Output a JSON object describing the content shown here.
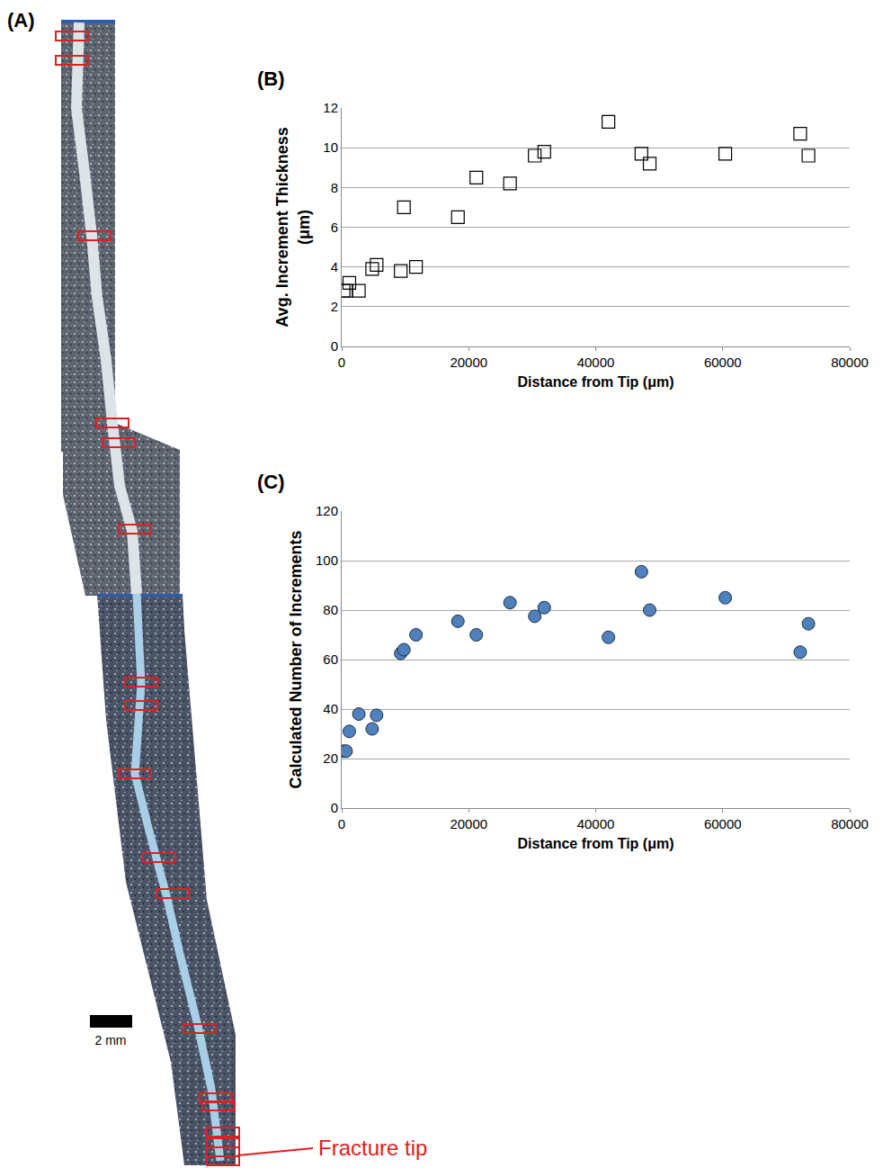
{
  "panel_a": {
    "label": "(A)",
    "scale_bar": "2 mm",
    "annotation": "Fracture tip"
  },
  "chart_data": [
    {
      "type": "scatter",
      "title": "(B)",
      "x_label": "Distance from Tip (μm)",
      "y_label": "Avg. Increment Thickness (μm)",
      "x": [
        300,
        700,
        1200,
        2700,
        4800,
        5500,
        9300,
        9800,
        11700,
        18300,
        21200,
        26500,
        30400,
        31900,
        42000,
        47200,
        48500,
        60400,
        72200,
        73500
      ],
      "values": [
        2.8,
        2.8,
        3.2,
        2.8,
        3.9,
        4.1,
        3.8,
        7.0,
        4.0,
        6.5,
        8.5,
        8.2,
        9.6,
        9.8,
        11.3,
        9.7,
        9.2,
        9.7,
        10.7,
        9.6
      ],
      "xlim": [
        0,
        80000
      ],
      "xticks": [
        0,
        20000,
        40000,
        60000,
        80000
      ],
      "ylim": [
        0,
        12
      ],
      "yticks": [
        0,
        2,
        4,
        6,
        8,
        10,
        12
      ],
      "grid": true,
      "marker": "square-open",
      "color": "#000000"
    },
    {
      "type": "scatter",
      "title": "(C)",
      "x_label": "Distance from Tip (μm)",
      "y_label": "Calculated Number of Increments",
      "x": [
        300,
        700,
        1200,
        2700,
        4800,
        5500,
        9300,
        9800,
        11700,
        18300,
        21200,
        26500,
        30400,
        31900,
        42000,
        47200,
        48500,
        60400,
        72200,
        73500
      ],
      "values": [
        23,
        23,
        31,
        38,
        32,
        37.5,
        62.5,
        64,
        70,
        75.5,
        70,
        83,
        77.5,
        81,
        69,
        95.5,
        80,
        85,
        63,
        74.5
      ],
      "xlim": [
        0,
        80000
      ],
      "xticks": [
        0,
        20000,
        40000,
        60000,
        80000
      ],
      "ylim": [
        0,
        120
      ],
      "yticks": [
        0,
        20,
        40,
        60,
        80,
        100,
        120
      ],
      "grid": true,
      "marker": "circle",
      "color": "#4f81bd"
    }
  ]
}
